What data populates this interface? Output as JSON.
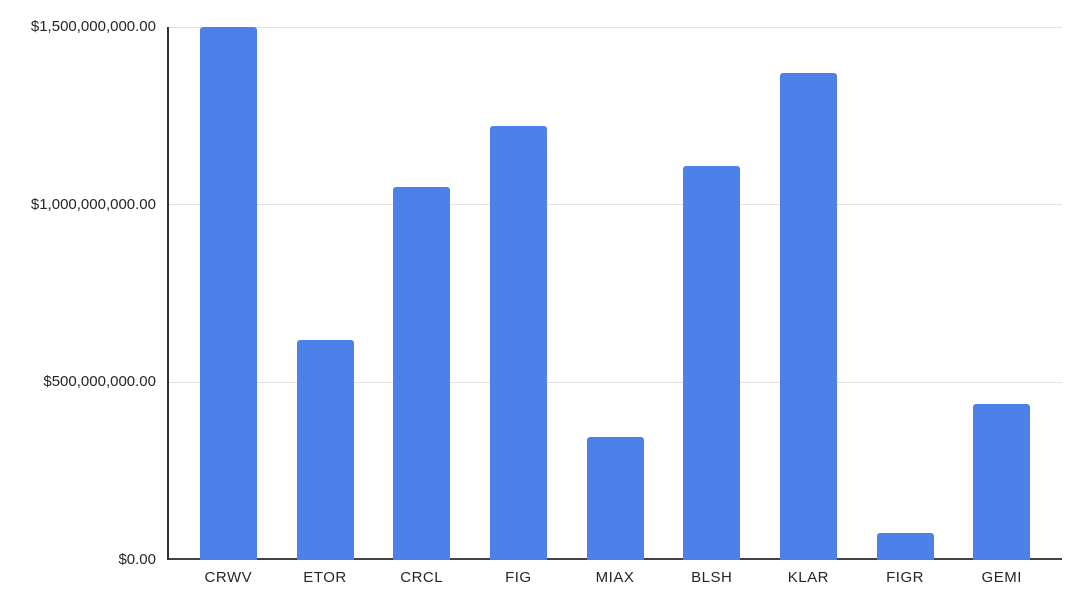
{
  "chart_data": {
    "type": "bar",
    "title": "",
    "xlabel": "",
    "ylabel": "",
    "categories": [
      "CRWV",
      "ETOR",
      "CRCL",
      "FIG",
      "MIAX",
      "BLSH",
      "KLAR",
      "FIGR",
      "GEMI"
    ],
    "values": [
      1500000000,
      620000000,
      1050000000,
      1220000000,
      345000000,
      1110000000,
      1370000000,
      75000000,
      440000000
    ],
    "ylim": [
      0,
      1500000000
    ],
    "y_ticks": [
      {
        "value": 0,
        "label": "$0.00"
      },
      {
        "value": 500000000,
        "label": "$500,000,000.00"
      },
      {
        "value": 1000000000,
        "label": "$1,000,000,000.00"
      },
      {
        "value": 1500000000,
        "label": "$1,500,000,000.00"
      }
    ],
    "grid": true,
    "legend": "none"
  },
  "style": {
    "background": "#ffffff",
    "bar_color": "#4d80e8",
    "gridline_color": "#e2e2e2",
    "baseline_color": "#424242",
    "y_axis_line_color": "#333333",
    "label_color": "#262626"
  }
}
